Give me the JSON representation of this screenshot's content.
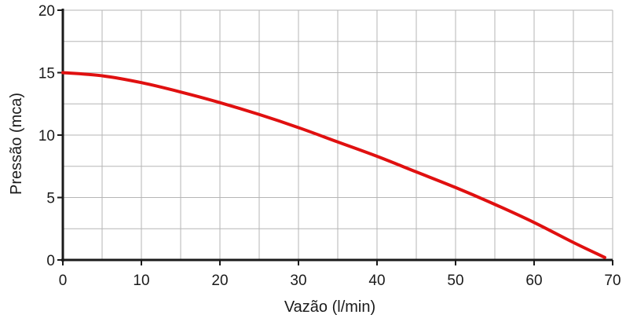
{
  "chart_data": {
    "type": "line",
    "title": "",
    "xlabel": "Vazão (l/min)",
    "ylabel": "Pressão (mca)",
    "xlim": [
      0,
      70
    ],
    "ylim": [
      0,
      20
    ],
    "x_ticks": [
      0,
      10,
      20,
      30,
      40,
      50,
      60,
      70
    ],
    "y_ticks": [
      0,
      5,
      10,
      15,
      20
    ],
    "x_minor_step": 5,
    "y_minor_step": 2.5,
    "grid": true,
    "series": [
      {
        "color": "#e01010",
        "x": [
          0,
          5,
          10,
          15,
          20,
          25,
          30,
          35,
          40,
          45,
          50,
          55,
          60,
          65,
          69
        ],
        "y": [
          15.0,
          14.75,
          14.2,
          13.45,
          12.6,
          11.65,
          10.6,
          9.45,
          8.3,
          7.05,
          5.8,
          4.45,
          3.0,
          1.4,
          0.2
        ]
      }
    ]
  }
}
